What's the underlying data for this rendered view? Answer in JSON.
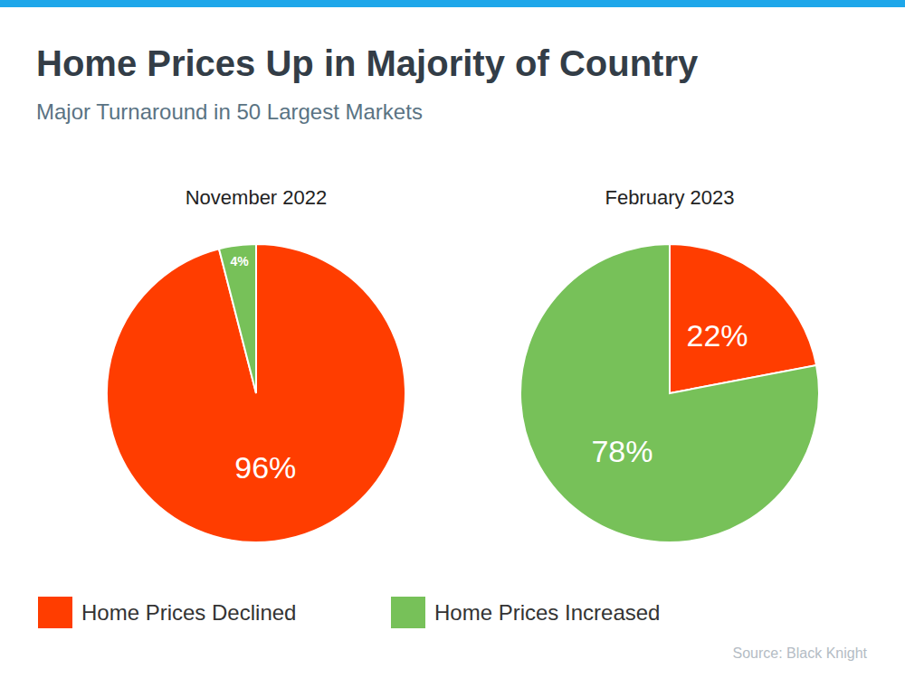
{
  "title": "Home Prices Up in Majority of Country",
  "subtitle": "Major Turnaround in 50 Largest Markets",
  "source": "Source: Black Knight",
  "chart_data": [
    {
      "type": "pie",
      "title": "November 2022",
      "categories": [
        "Home Prices Declined",
        "Home Prices Increased"
      ],
      "values": [
        96,
        4
      ],
      "value_labels": [
        "96%",
        "4%"
      ],
      "colors": [
        "#ff3d00",
        "#77c159"
      ],
      "data_labels": true,
      "legend": "bottom"
    },
    {
      "type": "pie",
      "title": "February 2023",
      "categories": [
        "Home Prices Declined",
        "Home Prices Increased"
      ],
      "values": [
        22,
        78
      ],
      "value_labels": [
        "22%",
        "78%"
      ],
      "colors": [
        "#ff3d00",
        "#77c159"
      ],
      "data_labels": true
    }
  ]
}
